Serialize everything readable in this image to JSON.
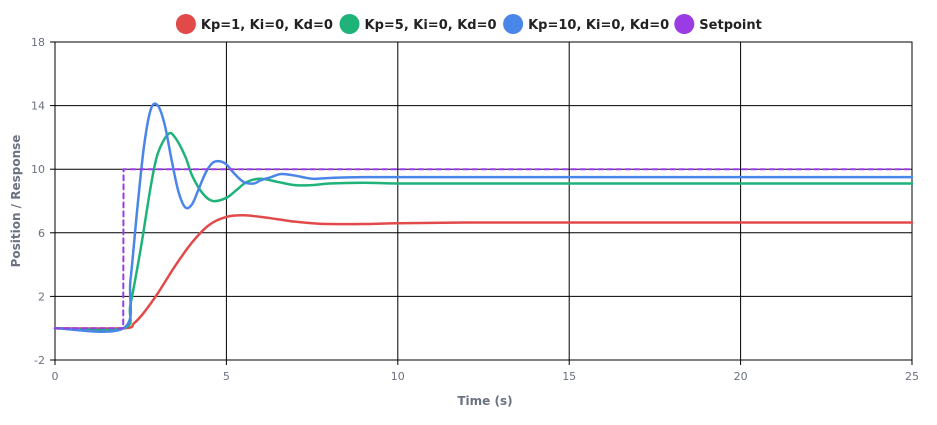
{
  "chart_data": {
    "type": "line",
    "title": "",
    "xlabel": "Time (s)",
    "ylabel": "Position / Response",
    "xlim": [
      0,
      25
    ],
    "ylim": [
      -2,
      18
    ],
    "x_ticks": [
      0,
      5,
      10,
      15,
      20,
      25
    ],
    "y_ticks": [
      -2,
      2,
      6,
      10,
      14,
      18
    ],
    "grid": true,
    "legend_position": "top-center",
    "series": [
      {
        "name": "Kp=1, Ki=0, Kd=0",
        "color": "#e24a4a",
        "x": [
          0,
          2,
          2.3,
          2.6,
          3.0,
          3.5,
          4.0,
          4.5,
          5.0,
          5.5,
          6.0,
          6.5,
          7.0,
          7.5,
          8.0,
          9.0,
          10.0,
          12.0,
          15.0,
          20.0,
          25.0
        ],
        "y": [
          0,
          0,
          0.3,
          1.0,
          2.2,
          3.9,
          5.4,
          6.5,
          7.0,
          7.1,
          7.0,
          6.85,
          6.7,
          6.6,
          6.55,
          6.55,
          6.6,
          6.65,
          6.65,
          6.65,
          6.65
        ]
      },
      {
        "name": "Kp=5, Ki=0, Kd=0",
        "color": "#1fb37a",
        "x": [
          0,
          2,
          2.2,
          2.5,
          2.8,
          3.0,
          3.3,
          3.5,
          3.8,
          4.0,
          4.3,
          4.6,
          5.0,
          5.3,
          5.6,
          6.0,
          6.5,
          7.0,
          7.5,
          8.0,
          9.0,
          10.0,
          12.0,
          15.0,
          20.0,
          25.0
        ],
        "y": [
          0,
          0,
          1.5,
          5.0,
          9.0,
          11.0,
          12.2,
          12.0,
          10.8,
          9.6,
          8.5,
          8.0,
          8.2,
          8.7,
          9.2,
          9.4,
          9.2,
          9.0,
          9.0,
          9.1,
          9.15,
          9.1,
          9.1,
          9.1,
          9.1,
          9.1
        ]
      },
      {
        "name": "Kp=10, Ki=0, Kd=0",
        "color": "#4a86e8",
        "x": [
          0,
          2,
          2.2,
          2.4,
          2.6,
          2.8,
          3.0,
          3.2,
          3.4,
          3.6,
          3.8,
          4.0,
          4.2,
          4.4,
          4.6,
          4.8,
          5.0,
          5.2,
          5.5,
          5.8,
          6.0,
          6.3,
          6.6,
          7.0,
          7.5,
          8.0,
          9.0,
          10.0,
          12.0,
          15.0,
          20.0,
          25.0
        ],
        "y": [
          0,
          0,
          3.0,
          7.5,
          11.5,
          13.8,
          14.0,
          12.8,
          10.6,
          8.6,
          7.6,
          7.8,
          8.8,
          9.8,
          10.4,
          10.5,
          10.3,
          9.8,
          9.2,
          9.1,
          9.3,
          9.5,
          9.7,
          9.6,
          9.4,
          9.45,
          9.5,
          9.5,
          9.5,
          9.5,
          9.5,
          9.5
        ]
      },
      {
        "name": "Setpoint",
        "color": "#9b3be3",
        "dashed": true,
        "x": [
          0,
          1.99,
          2.0,
          25
        ],
        "y": [
          0,
          0,
          10,
          10
        ]
      }
    ]
  }
}
